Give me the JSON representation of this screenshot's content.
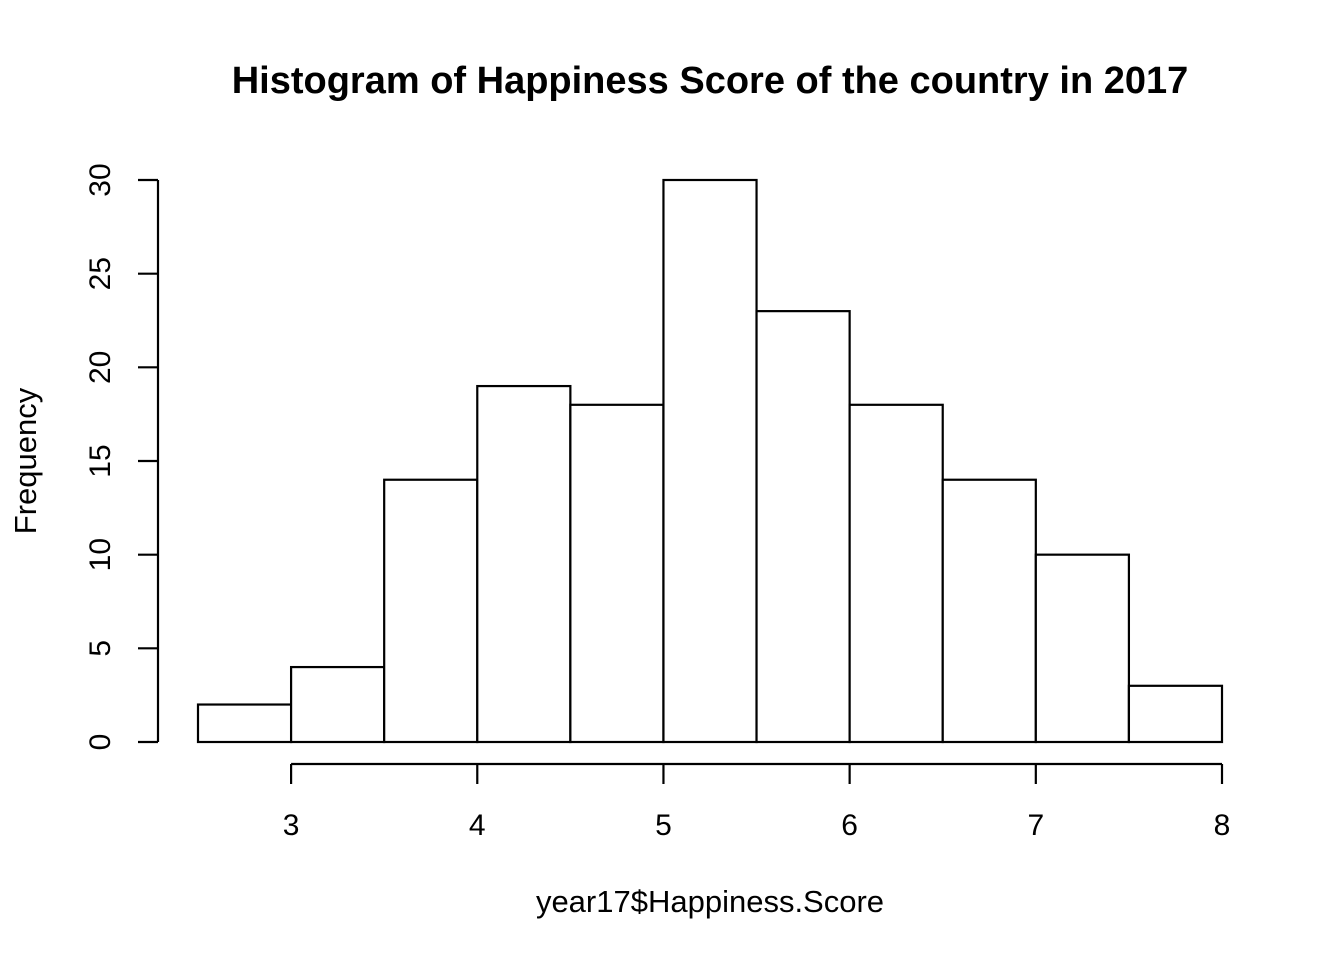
{
  "chart_data": {
    "type": "bar",
    "subtype": "histogram",
    "title": "Histogram of Happiness Score of the country in 2017",
    "xlabel": "year17$Happiness.Score",
    "ylabel": "Frequency",
    "bin_edges": [
      2.5,
      3.0,
      3.5,
      4.0,
      4.5,
      5.0,
      5.5,
      6.0,
      6.5,
      7.0,
      7.5,
      8.0
    ],
    "values": [
      2,
      4,
      14,
      19,
      18,
      30,
      23,
      18,
      14,
      10,
      3
    ],
    "xlim": [
      2.5,
      8
    ],
    "ylim": [
      0,
      30
    ],
    "x_ticks": [
      3,
      4,
      5,
      6,
      7,
      8
    ],
    "x_tick_labels": [
      "3",
      "4",
      "5",
      "6",
      "7",
      "8"
    ],
    "y_ticks": [
      0,
      5,
      10,
      15,
      20,
      25,
      30
    ],
    "y_tick_labels": [
      "0",
      "5",
      "10",
      "15",
      "20",
      "25",
      "30"
    ],
    "grid": false,
    "legend": "none",
    "colors": {
      "bar_fill": "#ffffff",
      "bar_stroke": "#000000"
    }
  }
}
